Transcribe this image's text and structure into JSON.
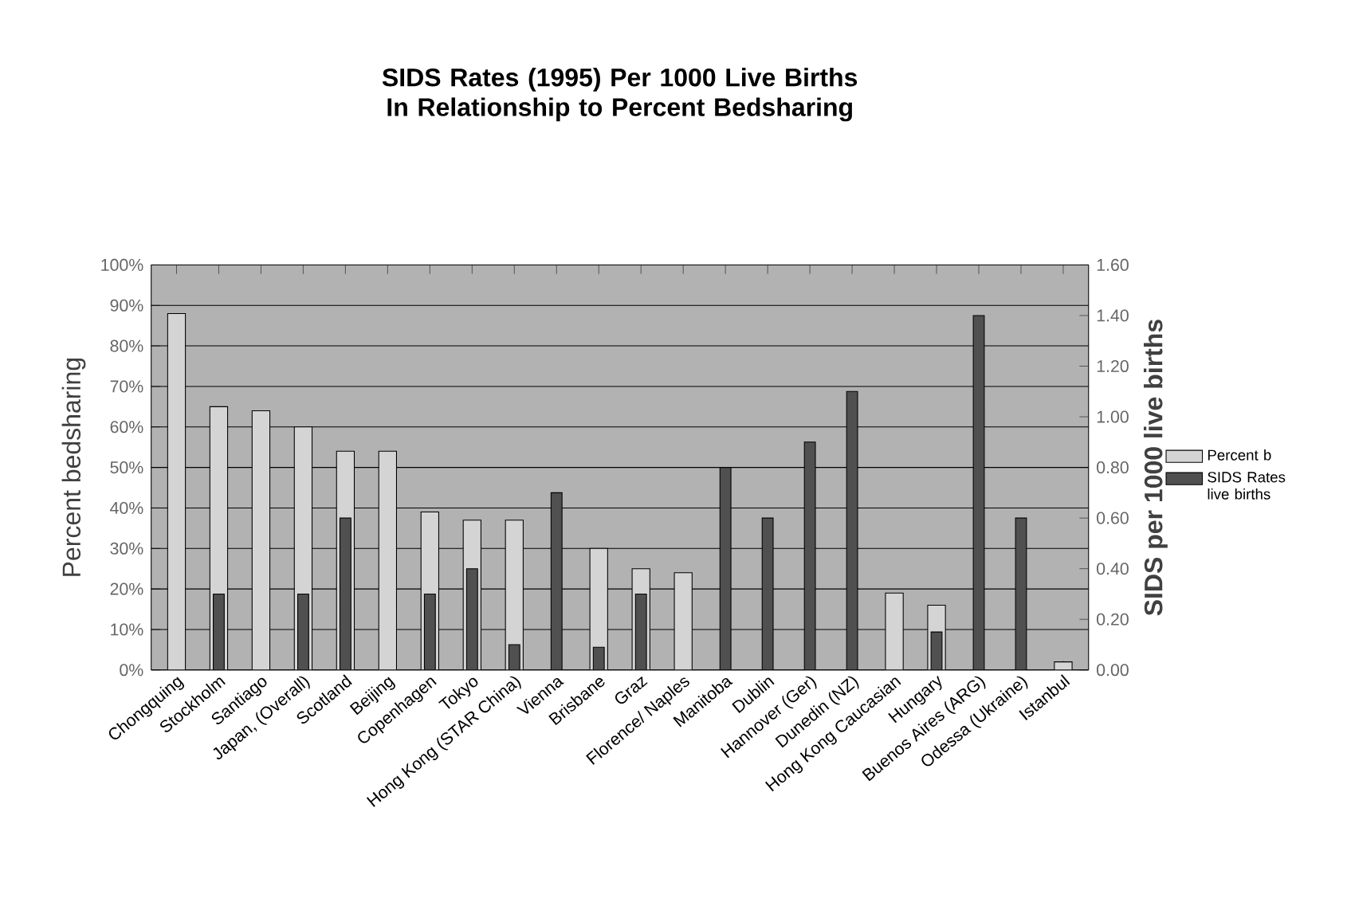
{
  "chart_data": {
    "type": "bar",
    "title": "SIDS Rates (1995) Per 1000 Live Births In Relationship to Percent Bedsharing",
    "ylabel": "Percent bedsharing",
    "y2label": "SIDS per 1000 live births",
    "categories": [
      "Chongquing",
      "Stockholm",
      "Santiago",
      "Japan, (Overall)",
      "Scotland",
      "Beijing",
      "Copenhagen",
      "Tokyo",
      "Hong Kong (STAR China)",
      "Vienna",
      "Brisbane",
      "Graz",
      "Florence/ Naples",
      "Manitoba",
      "Dublin",
      "Hannover (Ger)",
      "Dunedin (NZ)",
      "Hong Kong Caucasian",
      "Hungary",
      "Buenos Aires (ARG)",
      "Odessa (Ukraine)",
      "Istanbul"
    ],
    "series": [
      {
        "name": "Percent b",
        "color": "#d4d4d4",
        "values": [
          88,
          65,
          64,
          60,
          54,
          54,
          39,
          37,
          37,
          null,
          30,
          25,
          24,
          null,
          null,
          null,
          null,
          19,
          16,
          null,
          null,
          2
        ]
      },
      {
        "name": "SIDS Rates live births",
        "color": "#505050",
        "axis": "y2",
        "values": [
          null,
          0.3,
          null,
          0.3,
          0.6,
          null,
          0.3,
          0.4,
          0.1,
          0.7,
          0.09,
          0.3,
          null,
          0.8,
          0.6,
          0.9,
          1.1,
          null,
          0.15,
          1.4,
          0.6,
          null
        ]
      }
    ],
    "ylim": [
      0,
      100
    ],
    "yticks": [
      {
        "value": 0,
        "label": "0%"
      },
      {
        "value": 10,
        "label": "10%"
      },
      {
        "value": 20,
        "label": "20%"
      },
      {
        "value": 30,
        "label": "30%"
      },
      {
        "value": 40,
        "label": "40%"
      },
      {
        "value": 50,
        "label": "50%"
      },
      {
        "value": 60,
        "label": "60%"
      },
      {
        "value": 70,
        "label": "70%"
      },
      {
        "value": 80,
        "label": "80%"
      },
      {
        "value": 90,
        "label": "90%"
      },
      {
        "value": 100,
        "label": "100%"
      }
    ],
    "y2lim": [
      0,
      1.6
    ],
    "y2ticks": [
      {
        "value": 0,
        "label": "0.00"
      },
      {
        "value": 0.2,
        "label": "0.20"
      },
      {
        "value": 0.4,
        "label": "0.40"
      },
      {
        "value": 0.6,
        "label": "0.60"
      },
      {
        "value": 0.8,
        "label": "0.80"
      },
      {
        "value": 1.0,
        "label": "1.00"
      },
      {
        "value": 1.2,
        "label": "1.20"
      },
      {
        "value": 1.4,
        "label": "1.40"
      },
      {
        "value": 1.6,
        "label": "1.60"
      }
    ],
    "grid": "y",
    "legend": "right"
  }
}
